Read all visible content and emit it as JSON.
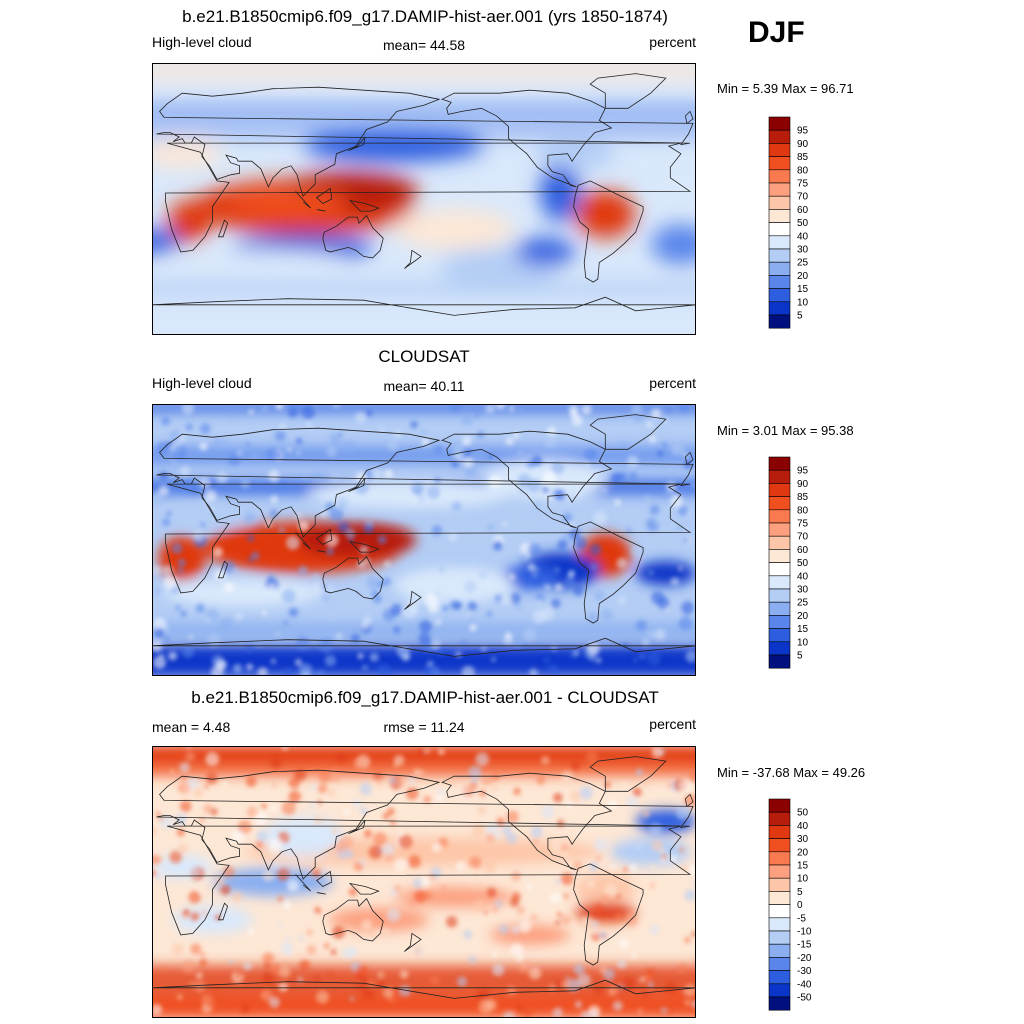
{
  "season": "DJF",
  "panels": [
    {
      "title": "b.e21.B1850cmip6.f09_g17.DAMIP-hist-aer.001 (yrs 1850-1874)",
      "left_label": "High-level cloud",
      "center_label": "mean=  44.58",
      "right_label": "percent",
      "minmax": "Min =   5.39 Max =  96.71"
    },
    {
      "title": "CLOUDSAT",
      "left_label": "High-level cloud",
      "center_label": "mean=  40.11",
      "right_label": "percent",
      "minmax": "Min =   3.01 Max =  95.38"
    },
    {
      "title": "b.e21.B1850cmip6.f09_g17.DAMIP-hist-aer.001 - CLOUDSAT",
      "left_label": "mean =   4.48",
      "center_label": "rmse =  11.24",
      "right_label": "percent",
      "minmax": "Min = -37.68 Max =  49.26"
    }
  ],
  "chart_data": [
    {
      "type": "heatmap",
      "panel": "model",
      "variable": "High-level cloud",
      "units": "percent",
      "mean": 44.58,
      "min": 5.39,
      "max": 96.71,
      "colorbar_levels": [
        95,
        90,
        85,
        80,
        75,
        70,
        60,
        50,
        40,
        30,
        25,
        20,
        15,
        10,
        5
      ],
      "colorbar_colors": [
        "#8b0000",
        "#b81c0b",
        "#e03810",
        "#f05020",
        "#f87a4e",
        "#fca080",
        "#fdc6a8",
        "#fde7d5",
        "#ffffff",
        "#d9e8fb",
        "#b3cdf5",
        "#8aaef0",
        "#5a86eb",
        "#2d5ee0",
        "#0a35c8",
        "#00107e"
      ]
    },
    {
      "type": "heatmap",
      "panel": "observation",
      "variable": "High-level cloud",
      "units": "percent",
      "mean": 40.11,
      "min": 3.01,
      "max": 95.38,
      "colorbar_levels": [
        95,
        90,
        85,
        80,
        75,
        70,
        60,
        50,
        40,
        30,
        25,
        20,
        15,
        10,
        5
      ],
      "colorbar_colors": [
        "#8b0000",
        "#b81c0b",
        "#e03810",
        "#f05020",
        "#f87a4e",
        "#fca080",
        "#fdc6a8",
        "#fde7d5",
        "#ffffff",
        "#d9e8fb",
        "#b3cdf5",
        "#8aaef0",
        "#5a86eb",
        "#2d5ee0",
        "#0a35c8",
        "#00107e"
      ]
    },
    {
      "type": "heatmap",
      "panel": "difference",
      "units": "percent",
      "mean": 4.48,
      "rmse": 11.24,
      "min": -37.68,
      "max": 49.26,
      "colorbar_levels": [
        50,
        40,
        30,
        20,
        15,
        10,
        5,
        0,
        -5,
        -10,
        -15,
        -20,
        -30,
        -40,
        -50
      ],
      "colorbar_colors": [
        "#8b0000",
        "#b81c0b",
        "#e03810",
        "#f05020",
        "#f87a4e",
        "#fca080",
        "#fdc6a8",
        "#fde7d5",
        "#ffffff",
        "#d9e8fb",
        "#b3cdf5",
        "#8aaef0",
        "#5a86eb",
        "#2d5ee0",
        "#0a35c8",
        "#00107e"
      ]
    }
  ]
}
